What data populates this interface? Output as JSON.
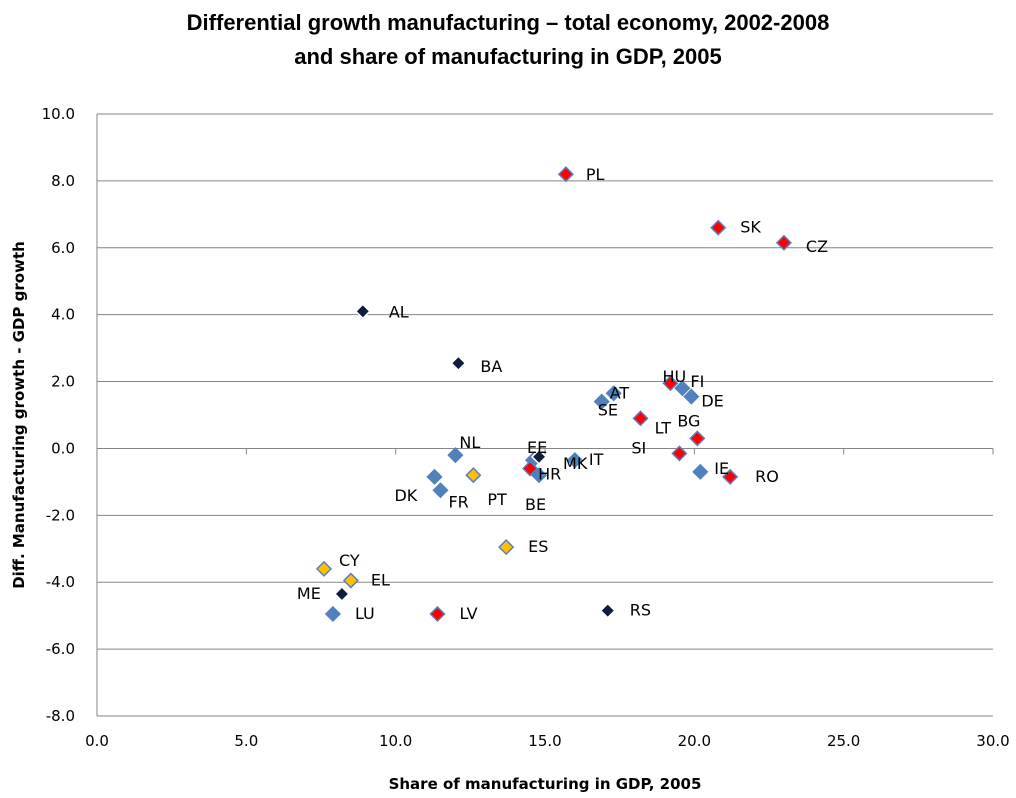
{
  "chart_data": {
    "type": "scatter",
    "title": "Differential growth manufacturing – total economy, 2002-2008",
    "subtitle": "and share of manufacturing in GDP, 2005",
    "xlabel": "Share of manufacturing in GDP, 2005",
    "ylabel": "Diff. Manufacturing growth - GDP growth",
    "xlim": [
      0,
      30
    ],
    "ylim": [
      -8,
      10
    ],
    "xticks": [
      "0.0",
      "5.0",
      "10.0",
      "15.0",
      "20.0",
      "25.0",
      "30.0"
    ],
    "yticks": [
      "-8.0",
      "-6.0",
      "-4.0",
      "-2.0",
      "0.0",
      "2.0",
      "4.0",
      "6.0",
      "8.0",
      "10.0"
    ],
    "grid": "horizontal",
    "marker": "diamond",
    "colors": {
      "blue": "#4f81bd",
      "red": "#ff0000",
      "yellow": "#ffc000",
      "navy": "#0f1c3c",
      "blue_edge": "#4f81bd",
      "red_edge": "#5a7fc0",
      "yellow_edge": "#5a7fc0",
      "navy_edge": "#ffffff"
    },
    "points": [
      {
        "label": "PL",
        "x": 15.7,
        "y": 8.2,
        "group": "red"
      },
      {
        "label": "SK",
        "x": 20.8,
        "y": 6.6,
        "group": "red"
      },
      {
        "label": "CZ",
        "x": 23.0,
        "y": 6.15,
        "group": "red"
      },
      {
        "label": "AL",
        "x": 8.9,
        "y": 4.1,
        "group": "navy"
      },
      {
        "label": "BA",
        "x": 12.1,
        "y": 2.55,
        "group": "navy"
      },
      {
        "label": "HU",
        "x": 19.2,
        "y": 1.95,
        "group": "red"
      },
      {
        "label": "AT",
        "x": 17.3,
        "y": 1.65,
        "group": "blue"
      },
      {
        "label": "SE",
        "x": 16.9,
        "y": 1.4,
        "group": "blue"
      },
      {
        "label": "FI",
        "x": 19.6,
        "y": 1.8,
        "group": "blue"
      },
      {
        "label": "DE",
        "x": 19.9,
        "y": 1.55,
        "group": "blue"
      },
      {
        "label": "LT",
        "x": 18.2,
        "y": 0.9,
        "group": "red"
      },
      {
        "label": "BG",
        "x": 20.1,
        "y": 0.3,
        "group": "red"
      },
      {
        "label": "SI",
        "x": 19.5,
        "y": -0.15,
        "group": "red"
      },
      {
        "label": "IE",
        "x": 20.2,
        "y": -0.7,
        "group": "blue"
      },
      {
        "label": "RO",
        "x": 21.2,
        "y": -0.85,
        "group": "red"
      },
      {
        "label": "NL",
        "x": 12.0,
        "y": -0.2,
        "group": "blue"
      },
      {
        "label": "EE",
        "x": 14.6,
        "y": -0.35,
        "group": "blue"
      },
      {
        "label": "MK",
        "x": 14.8,
        "y": -0.25,
        "group": "navy"
      },
      {
        "label": "IT",
        "x": 16.0,
        "y": -0.35,
        "group": "blue"
      },
      {
        "label": "HR",
        "x": 14.5,
        "y": -0.6,
        "group": "red"
      },
      {
        "label": "BE",
        "x": 14.8,
        "y": -0.8,
        "group": "blue"
      },
      {
        "label": "DK",
        "x": 11.3,
        "y": -0.85,
        "group": "blue"
      },
      {
        "label": "PT",
        "x": 12.6,
        "y": -0.8,
        "group": "yellow"
      },
      {
        "label": "FR",
        "x": 11.5,
        "y": -1.25,
        "group": "blue"
      },
      {
        "label": "ES",
        "x": 13.7,
        "y": -2.95,
        "group": "yellow"
      },
      {
        "label": "CY",
        "x": 7.6,
        "y": -3.6,
        "group": "yellow"
      },
      {
        "label": "EL",
        "x": 8.5,
        "y": -3.95,
        "group": "yellow"
      },
      {
        "label": "ME",
        "x": 8.2,
        "y": -4.35,
        "group": "navy"
      },
      {
        "label": "LU",
        "x": 7.9,
        "y": -4.95,
        "group": "blue"
      },
      {
        "label": "LV",
        "x": 11.4,
        "y": -4.95,
        "group": "red"
      },
      {
        "label": "RS",
        "x": 17.1,
        "y": -4.85,
        "group": "navy"
      }
    ]
  }
}
